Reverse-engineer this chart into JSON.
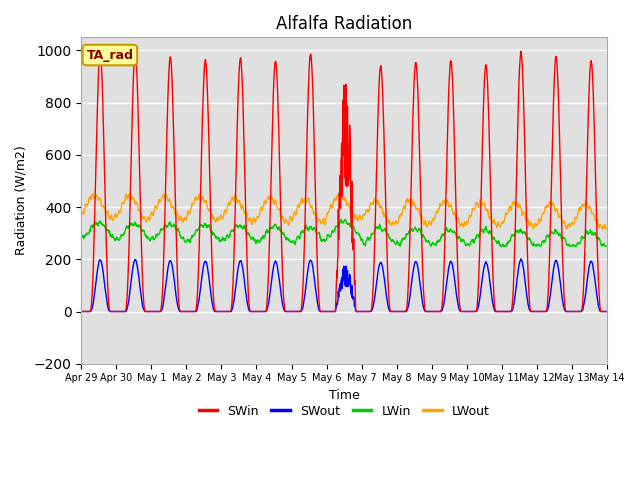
{
  "title": "Alfalfa Radiation",
  "xlabel": "Time",
  "ylabel": "Radiation (W/m2)",
  "ylim": [
    -200,
    1050
  ],
  "yticks": [
    -200,
    0,
    200,
    400,
    600,
    800,
    1000
  ],
  "series_labels": [
    "SWin",
    "SWout",
    "LWin",
    "LWout"
  ],
  "series_colors": [
    "red",
    "blue",
    "#00cc00",
    "orange"
  ],
  "background_color": "#e0e0e0",
  "xtick_labels": [
    "Apr 29",
    "Apr 30",
    "May 1",
    "May 2",
    "May 3",
    "May 4",
    "May 5",
    "May 6",
    "May 7",
    "May 8",
    "May 9",
    "May 10",
    "May 11",
    "May 12",
    "May 13",
    "May 14"
  ],
  "legend_position": "lower center",
  "legend_ncol": 4,
  "ta_rad_label": "TA_rad",
  "line_width": 1.0,
  "n_days": 15,
  "hours_per_day": 24,
  "dt_hours": 0.25
}
